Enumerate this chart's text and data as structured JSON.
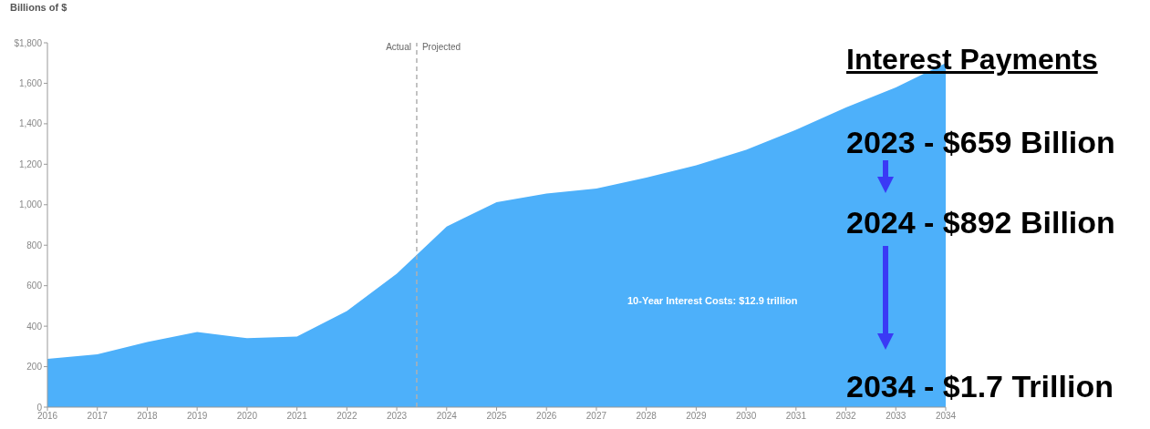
{
  "chart_data": {
    "type": "area",
    "ylabel": "Billions of $",
    "x": [
      2016,
      2017,
      2018,
      2019,
      2020,
      2021,
      2022,
      2023,
      2024,
      2025,
      2026,
      2027,
      2028,
      2029,
      2030,
      2031,
      2032,
      2033,
      2034
    ],
    "series": [
      {
        "color": "#4db0fa",
        "values": [
          238,
          261,
          322,
          371,
          341,
          349,
          475,
          659,
          892,
          1013,
          1055,
          1080,
          1134,
          1195,
          1271,
          1370,
          1480,
          1580,
          1700
        ]
      }
    ],
    "xlim": [
      2016,
      2034
    ],
    "xticks": [
      2016,
      2017,
      2018,
      2019,
      2020,
      2021,
      2022,
      2023,
      2024,
      2025,
      2026,
      2027,
      2028,
      2029,
      2030,
      2031,
      2032,
      2033,
      2034
    ],
    "ylim": [
      0,
      1800
    ],
    "yticks": [
      {
        "value": 0,
        "label": "0"
      },
      {
        "value": 200,
        "label": "200"
      },
      {
        "value": 400,
        "label": "400"
      },
      {
        "value": 600,
        "label": "600"
      },
      {
        "value": 800,
        "label": "800"
      },
      {
        "value": 1000,
        "label": "1,000"
      },
      {
        "value": 1200,
        "label": "1,200"
      },
      {
        "value": 1400,
        "label": "1,400"
      },
      {
        "value": 1600,
        "label": "1,600"
      },
      {
        "value": 1800,
        "label": "$1,800"
      }
    ],
    "ref_lines": [
      {
        "axis": "x",
        "value": 2023.4,
        "color": "#b0b0b0",
        "line_style": "dashed"
      }
    ],
    "annotations": [
      {
        "text": "Actual",
        "x": 2023.4,
        "y": 1800
      },
      {
        "text": "Projected",
        "x": 2023.4,
        "y": 1800
      },
      "10-Year Interest Costs: $12.9 trillion",
      "Interest Payments",
      "2023 - $659 Billion",
      "2024 - $892 Billion",
      "2034 - $1.7 Trillion"
    ],
    "grid": false,
    "legend": false
  }
}
